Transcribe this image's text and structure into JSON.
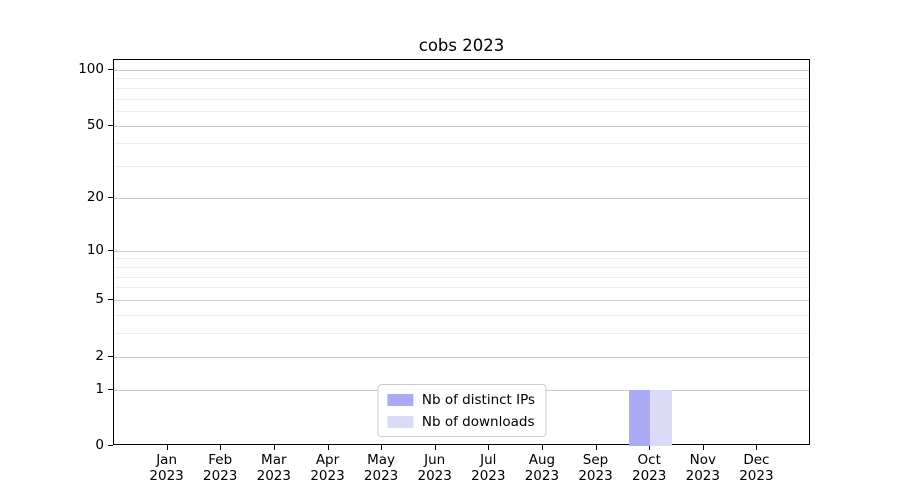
{
  "chart_data": {
    "type": "bar",
    "title": "cobs 2023",
    "categories": [
      "Jan",
      "Feb",
      "Mar",
      "Apr",
      "May",
      "Jun",
      "Jul",
      "Aug",
      "Sep",
      "Oct",
      "Nov",
      "Dec"
    ],
    "category_year": "2023",
    "series": [
      {
        "name": "Nb of distinct IPs",
        "color": "#aaaaf7",
        "values": [
          0,
          0,
          0,
          0,
          0,
          0,
          0,
          0,
          0,
          1,
          0,
          0
        ]
      },
      {
        "name": "Nb of downloads",
        "color": "#dbdbf8",
        "values": [
          0,
          0,
          0,
          0,
          0,
          0,
          0,
          0,
          0,
          1,
          0,
          0
        ]
      }
    ],
    "yscale": "log1p",
    "ylim": [
      0,
      113
    ],
    "yticks": [
      0,
      1,
      2,
      5,
      10,
      20,
      50,
      100
    ],
    "minor_yticks": [
      3,
      4,
      6,
      7,
      8,
      9,
      30,
      40,
      60,
      70,
      80,
      90
    ],
    "grid": "horizontal",
    "legend_position": "lower center",
    "colors": {
      "spine": "#000000",
      "major_grid": "#cbcbcb",
      "minor_grid": "#ededed",
      "background": "#ffffff"
    }
  }
}
